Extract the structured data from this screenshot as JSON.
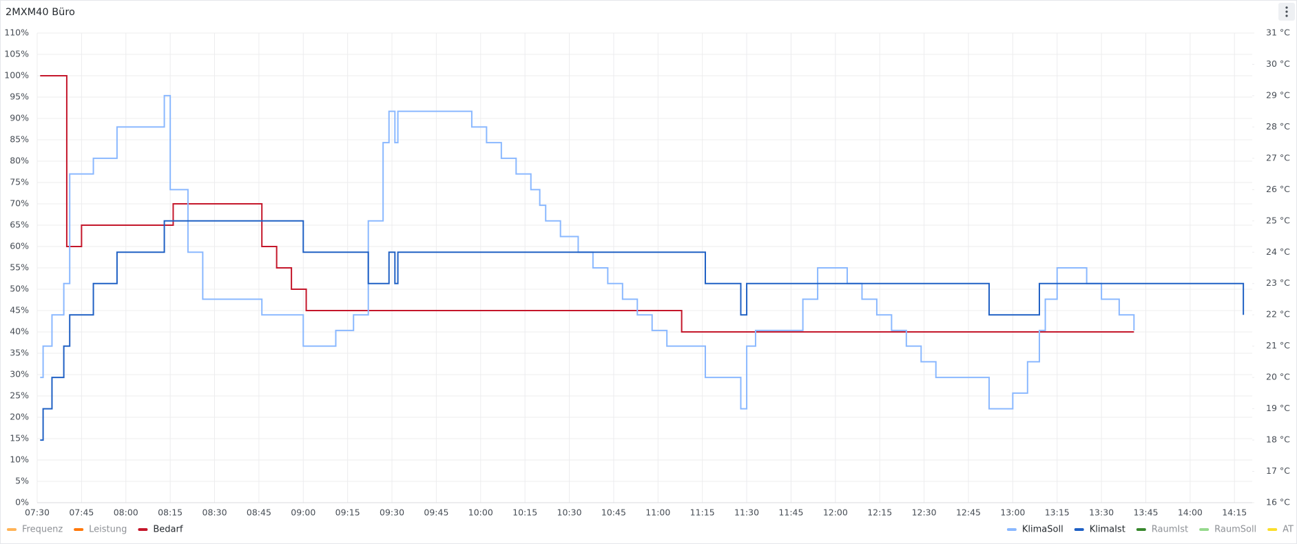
{
  "panel_title": "2MXM40 Büro",
  "chart_data": {
    "type": "step-line",
    "xlim": [
      "07:30",
      "14:21"
    ],
    "xticks": [
      "07:30",
      "07:45",
      "08:00",
      "08:15",
      "08:30",
      "08:45",
      "09:00",
      "09:15",
      "09:30",
      "09:45",
      "10:00",
      "10:15",
      "10:30",
      "10:45",
      "11:00",
      "11:15",
      "11:30",
      "11:45",
      "12:00",
      "12:15",
      "12:30",
      "12:45",
      "13:00",
      "13:15",
      "13:30",
      "13:45",
      "14:00",
      "14:15"
    ],
    "ylim": [
      0,
      110
    ],
    "yticks": [
      {
        "value": 0,
        "label": "0%"
      },
      {
        "value": 5,
        "label": "5%"
      },
      {
        "value": 10,
        "label": "10%"
      },
      {
        "value": 15,
        "label": "15%"
      },
      {
        "value": 20,
        "label": "20%"
      },
      {
        "value": 25,
        "label": "25%"
      },
      {
        "value": 30,
        "label": "30%"
      },
      {
        "value": 35,
        "label": "35%"
      },
      {
        "value": 40,
        "label": "40%"
      },
      {
        "value": 45,
        "label": "45%"
      },
      {
        "value": 50,
        "label": "50%"
      },
      {
        "value": 55,
        "label": "55%"
      },
      {
        "value": 60,
        "label": "60%"
      },
      {
        "value": 65,
        "label": "65%"
      },
      {
        "value": 70,
        "label": "70%"
      },
      {
        "value": 75,
        "label": "75%"
      },
      {
        "value": 80,
        "label": "80%"
      },
      {
        "value": 85,
        "label": "85%"
      },
      {
        "value": 90,
        "label": "90%"
      },
      {
        "value": 95,
        "label": "95%"
      },
      {
        "value": 100,
        "label": "100%"
      },
      {
        "value": 105,
        "label": "105%"
      },
      {
        "value": 110,
        "label": "110%"
      }
    ],
    "y2lim": [
      16,
      31
    ],
    "y2ticks": [
      {
        "value": 16,
        "label": "16 °C"
      },
      {
        "value": 17,
        "label": "17 °C"
      },
      {
        "value": 18,
        "label": "18 °C"
      },
      {
        "value": 19,
        "label": "19 °C"
      },
      {
        "value": 20,
        "label": "20 °C"
      },
      {
        "value": 21,
        "label": "21 °C"
      },
      {
        "value": 22,
        "label": "22 °C"
      },
      {
        "value": 23,
        "label": "23 °C"
      },
      {
        "value": 24,
        "label": "24 °C"
      },
      {
        "value": 25,
        "label": "25 °C"
      },
      {
        "value": 26,
        "label": "26 °C"
      },
      {
        "value": 27,
        "label": "27 °C"
      },
      {
        "value": 28,
        "label": "28 °C"
      },
      {
        "value": 29,
        "label": "29 °C"
      },
      {
        "value": 30,
        "label": "30 °C"
      },
      {
        "value": 31,
        "label": "31 °C"
      }
    ],
    "grid": true,
    "series": [
      {
        "name": "Frequenz",
        "color": "#ffb357",
        "axis": "y",
        "x": [],
        "values": []
      },
      {
        "name": "Leistung",
        "color": "#ff780a",
        "axis": "y",
        "x": [],
        "values": []
      },
      {
        "name": "Bedarf",
        "color": "#c4162a",
        "axis": "y",
        "x": [
          "07:31",
          "07:40",
          "07:45",
          "08:16",
          "08:46",
          "08:51",
          "08:56",
          "09:01",
          "11:08",
          "13:41"
        ],
        "values": [
          100,
          60,
          65,
          70,
          60,
          55,
          50,
          45,
          40,
          40
        ]
      },
      {
        "name": "KlimaSoll",
        "color": "#8ab8ff",
        "axis": "y2",
        "x": [
          "07:31",
          "07:32",
          "07:35",
          "07:39",
          "07:41",
          "07:49",
          "07:57",
          "08:13",
          "08:15",
          "08:21",
          "08:26",
          "08:46",
          "09:00",
          "09:11",
          "09:17",
          "09:22",
          "09:27",
          "09:29",
          "09:31",
          "09:32",
          "09:57",
          "10:02",
          "10:07",
          "10:12",
          "10:17",
          "10:20",
          "10:22",
          "10:27",
          "10:33",
          "10:38",
          "10:43",
          "10:48",
          "10:53",
          "10:58",
          "11:03",
          "11:16",
          "11:28",
          "11:30",
          "11:33",
          "11:49",
          "11:54",
          "12:04",
          "12:09",
          "12:14",
          "12:19",
          "12:24",
          "12:29",
          "12:34",
          "12:52",
          "13:00",
          "13:05",
          "13:09",
          "13:11",
          "13:15",
          "13:25",
          "13:30",
          "13:36",
          "13:41"
        ],
        "values": [
          20,
          21,
          22,
          23,
          26.5,
          27,
          28,
          29,
          26,
          24,
          22.5,
          22,
          21,
          21.5,
          22,
          25,
          27.5,
          28.5,
          27.5,
          28.5,
          28,
          27.5,
          27,
          26.5,
          26,
          25.5,
          25,
          24.5,
          24,
          23.5,
          23,
          22.5,
          22,
          21.5,
          21,
          20,
          19,
          21,
          21.5,
          22.5,
          23.5,
          23,
          22.5,
          22,
          21.5,
          21,
          20.5,
          20,
          19,
          19.5,
          20.5,
          21.5,
          22.5,
          23.5,
          23,
          22.5,
          22,
          21.5
        ]
      },
      {
        "name": "KlimaIst",
        "color": "#1f60c4",
        "axis": "y2",
        "x": [
          "07:31",
          "07:32",
          "07:35",
          "07:39",
          "07:41",
          "07:49",
          "07:57",
          "08:13",
          "09:00",
          "09:22",
          "09:29",
          "09:31",
          "09:32",
          "11:16",
          "11:28",
          "11:30",
          "12:52",
          "13:09",
          "14:18"
        ],
        "values": [
          18,
          19,
          20,
          21,
          22,
          23,
          24,
          25,
          24,
          23,
          24,
          23,
          24,
          23,
          22,
          23,
          22,
          23,
          22
        ]
      },
      {
        "name": "RaumIst",
        "color": "#37872d",
        "axis": "y2",
        "x": [],
        "values": []
      },
      {
        "name": "RaumSoll",
        "color": "#96d98d",
        "axis": "y2",
        "x": [],
        "values": []
      },
      {
        "name": "AT",
        "color": "#fade2a",
        "axis": "y2",
        "x": [],
        "values": []
      }
    ]
  }
}
